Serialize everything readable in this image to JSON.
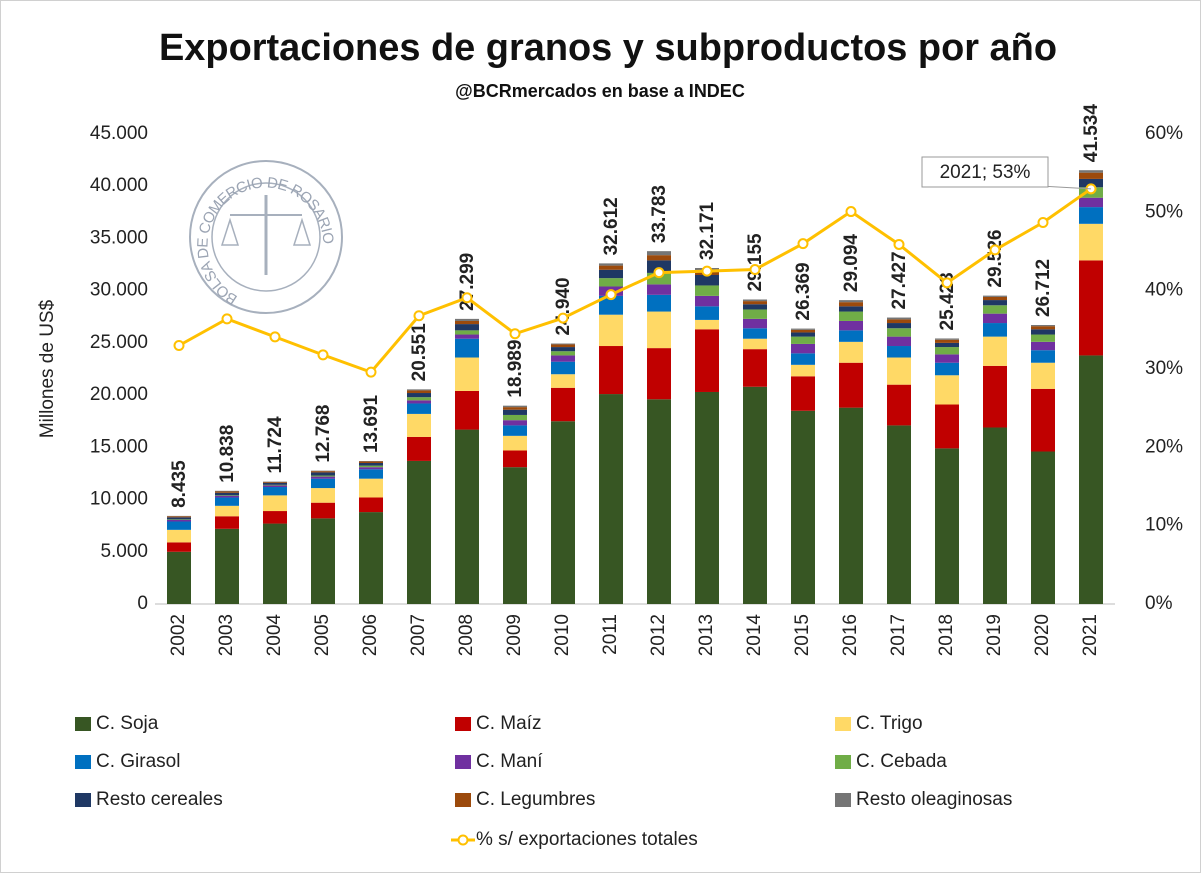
{
  "chart_data": {
    "type": "bar",
    "title": "Exportaciones de granos y subproductos por año",
    "subtitle": "@BCRmercados en base a INDEC",
    "y_label": "Millones de US$",
    "logo_text": "BOLSA DE COMERCIO DE ROSARIO",
    "annotation": "2021; 53%",
    "stacked": true,
    "categories": [
      "2002",
      "2003",
      "2004",
      "2005",
      "2006",
      "2007",
      "2008",
      "2009",
      "2010",
      "2011",
      "2012",
      "2013",
      "2014",
      "2015",
      "2016",
      "2017",
      "2018",
      "2019",
      "2020",
      "2021"
    ],
    "series": [
      {
        "name": "C. Soja",
        "color": "#375623",
        "values": [
          5000,
          7200,
          7700,
          8200,
          8800,
          13700,
          16700,
          13100,
          17500,
          20100,
          19600,
          20300,
          20800,
          18500,
          18800,
          17100,
          14900,
          16900,
          14600,
          23800
        ]
      },
      {
        "name": "C. Maíz",
        "color": "#c00000",
        "values": [
          900,
          1200,
          1200,
          1500,
          1400,
          2300,
          3700,
          1600,
          3200,
          4600,
          4900,
          6000,
          3600,
          3300,
          4300,
          3900,
          4200,
          5900,
          6000,
          9100
        ]
      },
      {
        "name": "C. Trigo",
        "color": "#ffd966",
        "values": [
          1200,
          1000,
          1500,
          1400,
          1800,
          2200,
          3200,
          1400,
          1300,
          3000,
          3500,
          900,
          1000,
          1100,
          2000,
          2600,
          2800,
          2800,
          2500,
          3500
        ]
      },
      {
        "name": "C. Girasol",
        "color": "#0070c0",
        "values": [
          800,
          800,
          800,
          900,
          900,
          1000,
          1800,
          1000,
          1200,
          1800,
          1600,
          1300,
          1000,
          1100,
          1100,
          1100,
          1200,
          1300,
          1200,
          1600
        ]
      },
      {
        "name": "C. Maní",
        "color": "#7030a0",
        "values": [
          150,
          150,
          150,
          200,
          200,
          300,
          400,
          500,
          600,
          900,
          1000,
          1000,
          900,
          900,
          900,
          900,
          800,
          900,
          800,
          900
        ]
      },
      {
        "name": "C. Cebada",
        "color": "#70ad47",
        "values": [
          50,
          50,
          60,
          100,
          150,
          300,
          400,
          500,
          400,
          800,
          1100,
          1000,
          900,
          700,
          900,
          800,
          700,
          800,
          700,
          1000
        ]
      },
      {
        "name": "Resto cereales",
        "color": "#1f3864",
        "values": [
          200,
          250,
          200,
          300,
          250,
          400,
          600,
          500,
          400,
          800,
          1200,
          1000,
          500,
          400,
          500,
          500,
          400,
          500,
          500,
          800
        ]
      },
      {
        "name": "C. Legumbres",
        "color": "#9c4a0c",
        "values": [
          100,
          120,
          80,
          120,
          150,
          250,
          300,
          250,
          250,
          400,
          500,
          400,
          300,
          250,
          400,
          350,
          300,
          300,
          300,
          600
        ]
      },
      {
        "name": "Resto oleaginosas",
        "color": "#757575",
        "values": [
          35,
          68,
          34,
          48,
          41,
          101,
          199,
          139,
          90,
          212,
          383,
          271,
          155,
          119,
          194,
          177,
          123,
          126,
          112,
          234
        ]
      },
      {
        "name": "% s/ exportaciones totales",
        "color": "#ffc000",
        "axis": "y2",
        "values": [
          33.0,
          36.4,
          34.1,
          31.8,
          29.6,
          36.8,
          39.1,
          34.5,
          36.5,
          39.5,
          42.3,
          42.5,
          42.7,
          46.0,
          50.1,
          45.9,
          41.0,
          45.2,
          48.7,
          53
        ]
      }
    ],
    "totals": {
      "values": [
        8435,
        10838,
        11724,
        12768,
        13691,
        20551,
        27299,
        18989,
        24940,
        32612,
        33783,
        32171,
        29155,
        26369,
        29094,
        27427,
        25423,
        29526,
        26712,
        41534
      ],
      "value_labels": [
        "8.435",
        "10.838",
        "11.724",
        "12.768",
        "13.691",
        "20.551",
        "27.299",
        "18.989",
        "24.940",
        "32.612",
        "33.783",
        "32.171",
        "29.155",
        "26.369",
        "29.094",
        "27.427",
        "25.423",
        "29.526",
        "26.712",
        "41.534"
      ]
    },
    "ylim": [
      0,
      45000
    ],
    "yticks": [
      0,
      {
        "value": 5000,
        "label": "5.000"
      },
      {
        "value": 10000,
        "label": "10.000"
      },
      {
        "value": 15000,
        "label": "15.000"
      },
      {
        "value": 20000,
        "label": "20.000"
      },
      {
        "value": 25000,
        "label": "25.000"
      },
      {
        "value": 30000,
        "label": "30.000"
      },
      {
        "value": 35000,
        "label": "35.000"
      },
      {
        "value": 40000,
        "label": "40.000"
      },
      {
        "value": 45000,
        "label": "45.000"
      }
    ],
    "y2lim": [
      0,
      60
    ],
    "y2ticks": [
      {
        "value": 0,
        "label": "0%"
      },
      {
        "value": 10,
        "label": "10%"
      },
      {
        "value": 20,
        "label": "20%"
      },
      {
        "value": 30,
        "label": "30%"
      },
      {
        "value": 40,
        "label": "40%"
      },
      {
        "value": 50,
        "label": "50%"
      },
      {
        "value": 60,
        "label": "60%"
      }
    ],
    "grid": false,
    "legend": "bottom"
  }
}
